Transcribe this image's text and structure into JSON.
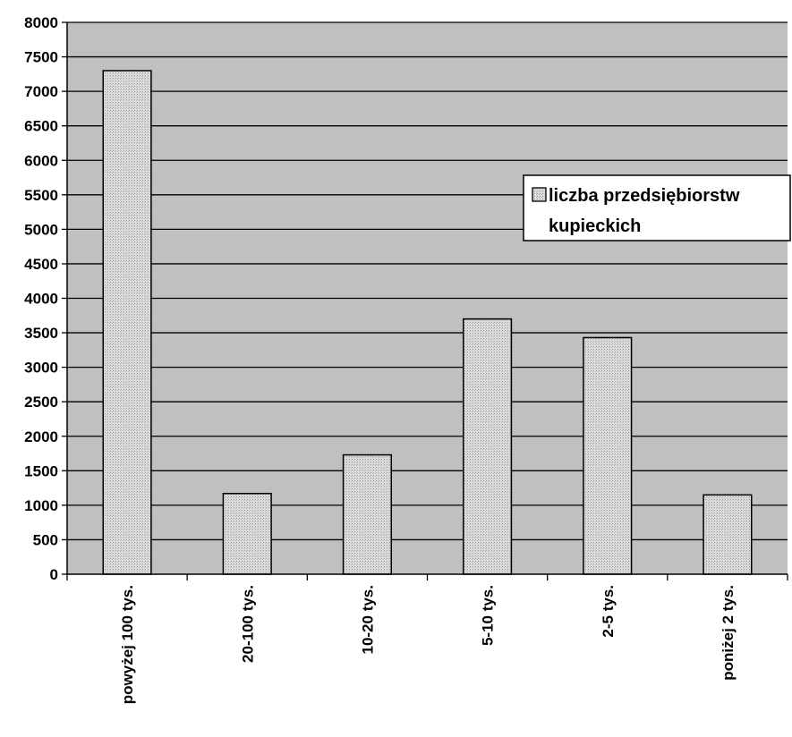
{
  "chart_data": {
    "type": "bar",
    "title": "",
    "xlabel": "",
    "ylabel": "",
    "categories": [
      "powyżej 100 tys.",
      "20-100 tys.",
      "10-20 tys.",
      "5-10 tys.",
      "2-5 tys.",
      "poniżej 2 tys."
    ],
    "series": [
      {
        "name": "liczba przedsiębiorstw kupieckich",
        "values": [
          7300,
          1170,
          1730,
          3700,
          3430,
          1150
        ]
      }
    ],
    "ylim": [
      0,
      8000
    ],
    "yticks": [
      "0",
      "500",
      "1000",
      "1500",
      "2000",
      "2500",
      "3000",
      "3500",
      "4000",
      "4500",
      "5000",
      "5500",
      "6000",
      "6500",
      "7000",
      "7500",
      "8000"
    ],
    "grid": true,
    "legend": {
      "placement": "right",
      "lines": [
        "liczba przedsiębiorstw",
        "kupieckich"
      ]
    },
    "colors": {
      "plot_background": "#c0c0c0",
      "bar_fill": "#d6d6d6",
      "bar_stroke": "#000000",
      "grid": "#000000"
    }
  }
}
